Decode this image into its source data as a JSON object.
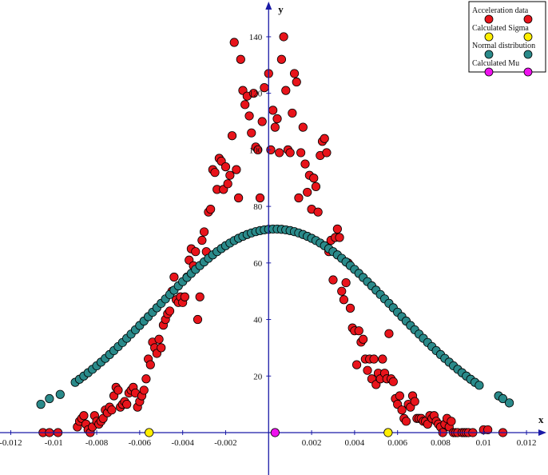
{
  "chart_data": {
    "type": "scatter",
    "title": "",
    "xlabel": "x",
    "ylabel": "y",
    "xlim": [
      -0.0125,
      0.013
    ],
    "ylim": [
      -15,
      153
    ],
    "grid": false,
    "legend_position": "top-right",
    "x_ticks": [
      {
        "value": -0.012,
        "label": "-0.012"
      },
      {
        "value": -0.01,
        "label": "-0.01"
      },
      {
        "value": -0.008,
        "label": "-0.008"
      },
      {
        "value": -0.006,
        "label": "-0.006"
      },
      {
        "value": -0.004,
        "label": "-0.004"
      },
      {
        "value": -0.002,
        "label": "-0.002"
      },
      {
        "value": 0.002,
        "label": "0.002"
      },
      {
        "value": 0.004,
        "label": "0.004"
      },
      {
        "value": 0.006,
        "label": "0.006"
      },
      {
        "value": 0.008,
        "label": "0.008"
      },
      {
        "value": 0.01,
        "label": "0.01"
      },
      {
        "value": 0.012,
        "label": "0.012"
      }
    ],
    "y_ticks": [
      {
        "value": 20,
        "label": "20"
      },
      {
        "value": 40,
        "label": "40"
      },
      {
        "value": 60,
        "label": "60"
      },
      {
        "value": 80,
        "label": "80"
      },
      {
        "value": 100,
        "label": "100"
      },
      {
        "value": 120,
        "label": "120"
      },
      {
        "value": 140,
        "label": "140"
      }
    ],
    "series": [
      {
        "name": "Acceleration data",
        "color": "#e8141b",
        "points": [
          [
            -0.0105,
            0
          ],
          [
            -0.0102,
            0
          ],
          [
            -0.0098,
            0
          ],
          [
            -0.0089,
            2
          ],
          [
            -0.0088,
            4
          ],
          [
            -0.0087,
            5
          ],
          [
            -0.0086,
            6
          ],
          [
            -0.0085,
            3
          ],
          [
            -0.0084,
            1
          ],
          [
            -0.0083,
            0
          ],
          [
            -0.0082,
            2
          ],
          [
            -0.0081,
            6
          ],
          [
            -0.008,
            4
          ],
          [
            -0.0079,
            3
          ],
          [
            -0.0078,
            4
          ],
          [
            -0.0077,
            5
          ],
          [
            -0.0076,
            8
          ],
          [
            -0.0075,
            7
          ],
          [
            -0.0074,
            9
          ],
          [
            -0.0073,
            8
          ],
          [
            -0.0072,
            13
          ],
          [
            -0.0071,
            16
          ],
          [
            -0.007,
            15
          ],
          [
            -0.0069,
            9
          ],
          [
            -0.0068,
            10
          ],
          [
            -0.0067,
            11
          ],
          [
            -0.0066,
            10
          ],
          [
            -0.0065,
            14
          ],
          [
            -0.0064,
            15
          ],
          [
            -0.0063,
            16
          ],
          [
            -0.0062,
            14
          ],
          [
            -0.0061,
            9
          ],
          [
            -0.006,
            11
          ],
          [
            -0.0059,
            13
          ],
          [
            -0.0058,
            15
          ],
          [
            -0.0057,
            19
          ],
          [
            -0.0056,
            26
          ],
          [
            -0.0055,
            24
          ],
          [
            -0.0054,
            32
          ],
          [
            -0.0053,
            30
          ],
          [
            -0.0052,
            28
          ],
          [
            -0.0051,
            33
          ],
          [
            -0.005,
            30
          ],
          [
            -0.0049,
            38
          ],
          [
            -0.0048,
            40
          ],
          [
            -0.0047,
            42
          ],
          [
            -0.0046,
            43
          ],
          [
            -0.0045,
            50
          ],
          [
            -0.0044,
            55
          ],
          [
            -0.0043,
            47
          ],
          [
            -0.0042,
            46
          ],
          [
            -0.0041,
            48
          ],
          [
            -0.004,
            46
          ],
          [
            -0.0039,
            48
          ],
          [
            -0.0038,
            55
          ],
          [
            -0.0037,
            61
          ],
          [
            -0.0036,
            65
          ],
          [
            -0.0035,
            59
          ],
          [
            -0.0034,
            64
          ],
          [
            -0.0033,
            40
          ],
          [
            -0.0032,
            48
          ],
          [
            -0.0031,
            68
          ],
          [
            -0.003,
            71
          ],
          [
            -0.0029,
            64
          ],
          [
            -0.0028,
            78
          ],
          [
            -0.0027,
            79
          ],
          [
            -0.0026,
            93
          ],
          [
            -0.0025,
            92
          ],
          [
            -0.0024,
            86
          ],
          [
            -0.0023,
            97
          ],
          [
            -0.0022,
            96
          ],
          [
            -0.0021,
            86
          ],
          [
            -0.002,
            94
          ],
          [
            -0.0019,
            88
          ],
          [
            -0.0018,
            91
          ],
          [
            -0.0017,
            105
          ],
          [
            -0.0016,
            138
          ],
          [
            -0.0015,
            93
          ],
          [
            -0.0014,
            83
          ],
          [
            -0.0013,
            132
          ],
          [
            -0.0012,
            121
          ],
          [
            -0.0011,
            116
          ],
          [
            -0.001,
            119
          ],
          [
            -0.0009,
            112
          ],
          [
            -0.0008,
            106
          ],
          [
            -0.0007,
            120
          ],
          [
            -0.0006,
            101
          ],
          [
            -0.0005,
            100
          ],
          [
            -0.0004,
            83
          ],
          [
            -0.0003,
            110
          ],
          [
            -0.0002,
            122
          ],
          [
            0.0,
            127
          ],
          [
            0.0001,
            100
          ],
          [
            0.0002,
            114
          ],
          [
            0.0003,
            108
          ],
          [
            0.0004,
            111
          ],
          [
            0.0005,
            99
          ],
          [
            0.0006,
            132
          ],
          [
            0.0007,
            140
          ],
          [
            0.0008,
            121
          ],
          [
            0.0009,
            100
          ],
          [
            0.001,
            99
          ],
          [
            0.0011,
            113
          ],
          [
            0.0012,
            127
          ],
          [
            0.0013,
            124
          ],
          [
            0.0014,
            83
          ],
          [
            0.0015,
            99
          ],
          [
            0.0016,
            108
          ],
          [
            0.0017,
            95
          ],
          [
            0.0018,
            85
          ],
          [
            0.0019,
            91
          ],
          [
            0.002,
            79
          ],
          [
            0.0021,
            90
          ],
          [
            0.0022,
            87
          ],
          [
            0.0023,
            78
          ],
          [
            0.0024,
            98
          ],
          [
            0.0025,
            103
          ],
          [
            0.0026,
            104
          ],
          [
            0.0027,
            99
          ],
          [
            0.0028,
            64
          ],
          [
            0.0029,
            68
          ],
          [
            0.003,
            54
          ],
          [
            0.0031,
            69
          ],
          [
            0.0032,
            72
          ],
          [
            0.0033,
            69
          ],
          [
            0.0034,
            50
          ],
          [
            0.0035,
            47
          ],
          [
            0.0036,
            53
          ],
          [
            0.0037,
            60
          ],
          [
            0.0038,
            44
          ],
          [
            0.0039,
            37
          ],
          [
            0.004,
            36
          ],
          [
            0.0041,
            24
          ],
          [
            0.0042,
            36
          ],
          [
            0.0043,
            32
          ],
          [
            0.0044,
            33
          ],
          [
            0.0045,
            26
          ],
          [
            0.0046,
            22
          ],
          [
            0.0047,
            26
          ],
          [
            0.0048,
            19
          ],
          [
            0.0049,
            26
          ],
          [
            0.005,
            17
          ],
          [
            0.0051,
            21
          ],
          [
            0.0052,
            19
          ],
          [
            0.0053,
            26
          ],
          [
            0.0054,
            21
          ],
          [
            0.0055,
            19
          ],
          [
            0.0056,
            35
          ],
          [
            0.0057,
            19
          ],
          [
            0.0058,
            18
          ],
          [
            0.0059,
            12
          ],
          [
            0.006,
            10
          ],
          [
            0.0061,
            13
          ],
          [
            0.0062,
            8
          ],
          [
            0.0063,
            5
          ],
          [
            0.0064,
            4
          ],
          [
            0.0065,
            10
          ],
          [
            0.0066,
            9
          ],
          [
            0.0067,
            13
          ],
          [
            0.0068,
            11
          ],
          [
            0.0069,
            5
          ],
          [
            0.007,
            5
          ],
          [
            0.0071,
            5
          ],
          [
            0.0072,
            4
          ],
          [
            0.0073,
            4
          ],
          [
            0.0074,
            3
          ],
          [
            0.0075,
            6
          ],
          [
            0.0076,
            5
          ],
          [
            0.0077,
            6
          ],
          [
            0.0078,
            4
          ],
          [
            0.0079,
            3
          ],
          [
            0.008,
            2
          ],
          [
            0.0081,
            0
          ],
          [
            0.0082,
            3
          ],
          [
            0.0083,
            5
          ],
          [
            0.0084,
            2
          ],
          [
            0.0085,
            4
          ],
          [
            0.0086,
            0
          ],
          [
            0.0087,
            0
          ],
          [
            0.0088,
            0
          ],
          [
            0.009,
            0
          ],
          [
            0.0091,
            0
          ],
          [
            0.0092,
            0
          ],
          [
            0.0093,
            0
          ],
          [
            0.0095,
            0
          ],
          [
            0.01,
            1
          ],
          [
            0.0102,
            1
          ],
          [
            0.0109,
            0
          ]
        ]
      },
      {
        "name": "Calculated Sigma",
        "color": "#ffee00",
        "points": [
          [
            -0.00556,
            0
          ],
          [
            0.00556,
            0
          ]
        ]
      },
      {
        "name": "Normal distribution",
        "color": "#2a8a8a",
        "mu": 0.0003,
        "sigma": 0.00556,
        "amplitude": 72,
        "range": [
          -0.009,
          0.0098
        ],
        "step": 0.0002,
        "extra_points": [
          [
            -0.0106,
            10
          ],
          [
            -0.0102,
            12
          ],
          [
            -0.0097,
            13.5
          ],
          [
            0.0107,
            13
          ],
          [
            0.0109,
            12
          ],
          [
            0.0112,
            10.5
          ]
        ]
      },
      {
        "name": "Calculated Mu",
        "color": "#ee11ee",
        "points": [
          [
            0.0003,
            0
          ]
        ]
      }
    ]
  }
}
